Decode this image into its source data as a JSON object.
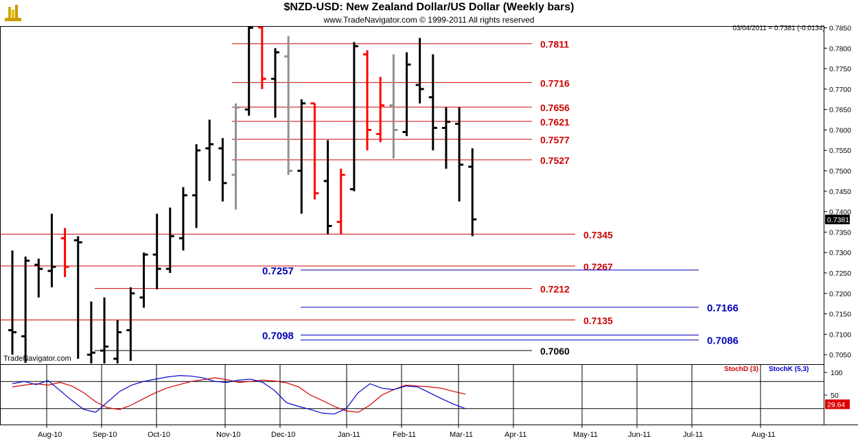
{
  "header": {
    "title": "$NZD-USD:  New Zealand Dollar/US Dollar  (Weekly bars)",
    "subtitle": "www.TradeNavigator.com © 1999-2011 All rights reserved",
    "readout": "03/04/2011 = 0.7381 (-0.0134)",
    "watermark": "TradeNavigator.com"
  },
  "colors": {
    "up": "#000000",
    "down": "#ff0000",
    "neutral": "#909090",
    "resistance": "#cc0000",
    "support": "#0000bb",
    "stochD": "#d00000",
    "stochK": "#0000cc"
  },
  "chart_data": [
    {
      "type": "ohlc",
      "title": "$NZD-USD:  New Zealand Dollar/US Dollar  (Weekly bars)",
      "ylim": [
        0.7025,
        0.786
      ],
      "y_ticks": [
        "0.7850",
        "0.7800",
        "0.7750",
        "0.7700",
        "0.7650",
        "0.7600",
        "0.7550",
        "0.7500",
        "0.7450",
        "0.7400",
        "0.7350",
        "0.7300",
        "0.7250",
        "0.7200",
        "0.7150",
        "0.7100",
        "0.7050"
      ],
      "x_ticks": [
        "Aug-10",
        "Sep-10",
        "Oct-10",
        "Nov-10",
        "Dec-10",
        "Jan-11",
        "Feb-11",
        "Mar-11",
        "Apr-11",
        "May-11",
        "Jun-11",
        "Jul-11",
        "Aug-11"
      ],
      "last_price": "0.7381",
      "bars": [
        {
          "o": 0.711,
          "h": 0.7305,
          "l": 0.705,
          "c": 0.7105,
          "color": "up"
        },
        {
          "o": 0.7095,
          "h": 0.729,
          "l": 0.703,
          "c": 0.728,
          "color": "up"
        },
        {
          "o": 0.727,
          "h": 0.7285,
          "l": 0.719,
          "c": 0.726,
          "color": "up"
        },
        {
          "o": 0.7255,
          "h": 0.7395,
          "l": 0.7215,
          "c": 0.7265,
          "color": "up"
        },
        {
          "o": 0.7335,
          "h": 0.736,
          "l": 0.724,
          "c": 0.7265,
          "color": "down"
        },
        {
          "o": 0.733,
          "h": 0.734,
          "l": 0.704,
          "c": 0.7325,
          "color": "up"
        },
        {
          "o": 0.705,
          "h": 0.718,
          "l": 0.7,
          "c": 0.7055,
          "color": "up"
        },
        {
          "o": 0.706,
          "h": 0.719,
          "l": 0.702,
          "c": 0.707,
          "color": "up"
        },
        {
          "o": 0.704,
          "h": 0.7135,
          "l": 0.7,
          "c": 0.7105,
          "color": "up"
        },
        {
          "o": 0.711,
          "h": 0.7215,
          "l": 0.7035,
          "c": 0.72,
          "color": "up"
        },
        {
          "o": 0.719,
          "h": 0.73,
          "l": 0.7165,
          "c": 0.7295,
          "color": "up"
        },
        {
          "o": 0.7295,
          "h": 0.7395,
          "l": 0.721,
          "c": 0.726,
          "color": "up"
        },
        {
          "o": 0.726,
          "h": 0.741,
          "l": 0.725,
          "c": 0.734,
          "color": "up"
        },
        {
          "o": 0.7335,
          "h": 0.746,
          "l": 0.7305,
          "c": 0.744,
          "color": "up"
        },
        {
          "o": 0.744,
          "h": 0.7565,
          "l": 0.736,
          "c": 0.755,
          "color": "up"
        },
        {
          "o": 0.7555,
          "h": 0.7625,
          "l": 0.7475,
          "c": 0.7565,
          "color": "up"
        },
        {
          "o": 0.7555,
          "h": 0.758,
          "l": 0.7425,
          "c": 0.747,
          "color": "up"
        },
        {
          "o": 0.749,
          "h": 0.7665,
          "l": 0.7405,
          "c": 0.7655,
          "color": "neutral"
        },
        {
          "o": 0.765,
          "h": 0.7855,
          "l": 0.7635,
          "c": 0.785,
          "color": "up"
        },
        {
          "o": 0.7855,
          "h": 0.7855,
          "l": 0.77,
          "c": 0.7725,
          "color": "down"
        },
        {
          "o": 0.7725,
          "h": 0.78,
          "l": 0.763,
          "c": 0.779,
          "color": "up"
        },
        {
          "o": 0.778,
          "h": 0.783,
          "l": 0.749,
          "c": 0.75,
          "color": "neutral"
        },
        {
          "o": 0.75,
          "h": 0.7675,
          "l": 0.7395,
          "c": 0.7665,
          "color": "up"
        },
        {
          "o": 0.7665,
          "h": 0.7665,
          "l": 0.743,
          "c": 0.7445,
          "color": "down"
        },
        {
          "o": 0.7475,
          "h": 0.7575,
          "l": 0.7345,
          "c": 0.7365,
          "color": "up"
        },
        {
          "o": 0.7375,
          "h": 0.7505,
          "l": 0.7345,
          "c": 0.749,
          "color": "down"
        },
        {
          "o": 0.7455,
          "h": 0.7815,
          "l": 0.745,
          "c": 0.7805,
          "color": "up"
        },
        {
          "o": 0.7785,
          "h": 0.7795,
          "l": 0.755,
          "c": 0.76,
          "color": "down"
        },
        {
          "o": 0.759,
          "h": 0.773,
          "l": 0.757,
          "c": 0.766,
          "color": "down"
        },
        {
          "o": 0.766,
          "h": 0.7785,
          "l": 0.753,
          "c": 0.76,
          "color": "neutral"
        },
        {
          "o": 0.7595,
          "h": 0.779,
          "l": 0.7585,
          "c": 0.776,
          "color": "up"
        },
        {
          "o": 0.771,
          "h": 0.7825,
          "l": 0.7665,
          "c": 0.77,
          "color": "up"
        },
        {
          "o": 0.768,
          "h": 0.7785,
          "l": 0.755,
          "c": 0.7605,
          "color": "up"
        },
        {
          "o": 0.7605,
          "h": 0.7655,
          "l": 0.7505,
          "c": 0.762,
          "color": "up"
        },
        {
          "o": 0.7615,
          "h": 0.7655,
          "l": 0.7425,
          "c": 0.7515,
          "color": "up"
        },
        {
          "o": 0.751,
          "h": 0.7555,
          "l": 0.734,
          "c": 0.7381,
          "color": "up"
        }
      ],
      "levels": [
        {
          "value": 0.7811,
          "label": "0.7811",
          "kind": "resistance",
          "label_side": "right"
        },
        {
          "value": 0.7716,
          "label": "0.7716",
          "kind": "resistance",
          "label_side": "right"
        },
        {
          "value": 0.7656,
          "label": "0.7656",
          "kind": "resistance",
          "label_side": "right"
        },
        {
          "value": 0.7621,
          "label": "0.7621",
          "kind": "resistance",
          "label_side": "right"
        },
        {
          "value": 0.7577,
          "label": "0.7577",
          "kind": "resistance",
          "label_side": "right"
        },
        {
          "value": 0.7527,
          "label": "0.7527",
          "kind": "resistance",
          "label_side": "right"
        },
        {
          "value": 0.7345,
          "label": "0.7345",
          "kind": "resistance",
          "label_side": "right"
        },
        {
          "value": 0.7267,
          "label": "0.7267",
          "kind": "resistance",
          "label_side": "right"
        },
        {
          "value": 0.7257,
          "label": "0.7257",
          "kind": "support",
          "label_side": "left"
        },
        {
          "value": 0.7212,
          "label": "0.7212",
          "kind": "resistance",
          "label_side": "right"
        },
        {
          "value": 0.7166,
          "label": "0.7166",
          "kind": "support",
          "label_side": "right"
        },
        {
          "value": 0.7135,
          "label": "0.7135",
          "kind": "resistance",
          "label_side": "right"
        },
        {
          "value": 0.7098,
          "label": "0.7098",
          "kind": "support",
          "label_side": "left"
        },
        {
          "value": 0.7086,
          "label": "0.7086",
          "kind": "support",
          "label_side": "right"
        },
        {
          "value": 0.706,
          "label": "0.7060",
          "kind": "black",
          "label_side": "right"
        }
      ]
    },
    {
      "type": "line",
      "series": [
        {
          "name": "StochD (3)",
          "values": [
            68,
            72,
            75,
            72,
            78,
            70,
            55,
            35,
            22,
            18,
            28,
            42,
            55,
            66,
            73,
            80,
            84,
            88,
            84,
            78,
            80,
            83,
            81,
            77,
            68,
            50,
            38,
            25,
            15,
            12,
            28,
            50,
            62,
            72,
            70,
            68,
            65,
            58,
            52
          ]
        },
        {
          "name": "StochK (5,3)",
          "values": [
            75,
            80,
            73,
            82,
            60,
            38,
            18,
            12,
            35,
            58,
            72,
            80,
            85,
            90,
            93,
            92,
            88,
            80,
            78,
            83,
            85,
            78,
            60,
            33,
            25,
            18,
            10,
            8,
            20,
            55,
            75,
            65,
            62,
            70,
            68,
            55,
            42,
            30,
            20
          ]
        }
      ],
      "y_ticks": [
        "100",
        "50"
      ],
      "last_value": "29.64"
    }
  ],
  "legend": {
    "stochD": "StochD (3)",
    "stochK": "StochK (5,3)"
  }
}
